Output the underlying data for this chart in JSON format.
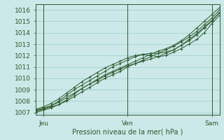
{
  "xlabel": "Pression niveau de la mer( hPa )",
  "bg_color": "#cce8e8",
  "grid_color": "#99cccc",
  "line_color": "#2d5a2d",
  "xlim": [
    0,
    48
  ],
  "ylim": [
    1006.8,
    1016.5
  ],
  "yticks": [
    1007,
    1008,
    1009,
    1010,
    1011,
    1012,
    1013,
    1014,
    1015,
    1016
  ],
  "xtick_labels": [
    "Jeu",
    "Ven",
    "Sam"
  ],
  "xtick_pos": [
    2,
    24,
    46
  ],
  "vline_pos": [
    2,
    24,
    46
  ],
  "font_size": 7,
  "tick_font_size": 6.5,
  "series": [
    {
      "x": [
        0,
        2,
        4,
        6,
        8,
        10,
        12,
        14,
        16,
        18,
        20,
        22,
        24,
        26,
        28,
        30,
        32,
        34,
        36,
        38,
        40,
        42,
        44,
        46,
        48
      ],
      "y": [
        1007.2,
        1007.3,
        1007.5,
        1007.7,
        1008.0,
        1008.4,
        1008.8,
        1009.2,
        1009.6,
        1010.0,
        1010.3,
        1010.6,
        1011.0,
        1011.3,
        1011.6,
        1011.9,
        1012.2,
        1012.5,
        1012.8,
        1013.2,
        1013.6,
        1014.1,
        1014.7,
        1015.3,
        1016.0
      ]
    },
    {
      "x": [
        0,
        2,
        4,
        6,
        8,
        10,
        12,
        14,
        16,
        18,
        20,
        22,
        24,
        26,
        28,
        30,
        32,
        34,
        36,
        38,
        40,
        42,
        44,
        46,
        48
      ],
      "y": [
        1007.2,
        1007.4,
        1007.6,
        1007.9,
        1008.3,
        1008.7,
        1009.1,
        1009.5,
        1009.9,
        1010.3,
        1010.6,
        1010.9,
        1011.2,
        1011.5,
        1011.8,
        1012.1,
        1012.4,
        1012.6,
        1012.9,
        1013.3,
        1013.8,
        1014.4,
        1015.0,
        1015.6,
        1016.2
      ]
    },
    {
      "x": [
        0,
        2,
        4,
        6,
        8,
        10,
        12,
        14,
        16,
        18,
        20,
        22,
        24,
        26,
        28,
        30,
        32,
        34,
        36,
        38,
        40,
        42,
        44,
        46,
        48
      ],
      "y": [
        1007.3,
        1007.5,
        1007.8,
        1008.2,
        1008.7,
        1009.2,
        1009.7,
        1010.1,
        1010.5,
        1010.9,
        1011.2,
        1011.5,
        1011.8,
        1012.0,
        1012.1,
        1012.0,
        1011.9,
        1012.0,
        1012.3,
        1012.6,
        1013.0,
        1013.4,
        1014.0,
        1014.8,
        1015.5
      ]
    },
    {
      "x": [
        0,
        2,
        4,
        6,
        8,
        10,
        12,
        14,
        16,
        18,
        20,
        22,
        24,
        26,
        28,
        30,
        32,
        34,
        36,
        38,
        40,
        42,
        44,
        46,
        48
      ],
      "y": [
        1007.0,
        1007.2,
        1007.4,
        1007.7,
        1008.1,
        1008.6,
        1009.1,
        1009.5,
        1009.8,
        1010.2,
        1010.5,
        1010.8,
        1011.1,
        1011.3,
        1011.5,
        1011.7,
        1011.9,
        1012.2,
        1012.5,
        1012.9,
        1013.4,
        1013.9,
        1014.5,
        1015.1,
        1015.8
      ]
    },
    {
      "x": [
        0,
        2,
        4,
        6,
        8,
        10,
        12,
        14,
        16,
        18,
        20,
        22,
        24,
        26,
        28,
        30,
        32,
        34,
        36,
        38,
        40,
        42,
        44,
        46,
        48
      ],
      "y": [
        1007.1,
        1007.3,
        1007.6,
        1008.0,
        1008.5,
        1009.0,
        1009.4,
        1009.8,
        1010.2,
        1010.6,
        1011.0,
        1011.3,
        1011.6,
        1011.9,
        1012.1,
        1012.2,
        1012.2,
        1012.3,
        1012.5,
        1012.9,
        1013.3,
        1013.8,
        1014.4,
        1015.0,
        1015.7
      ]
    }
  ]
}
